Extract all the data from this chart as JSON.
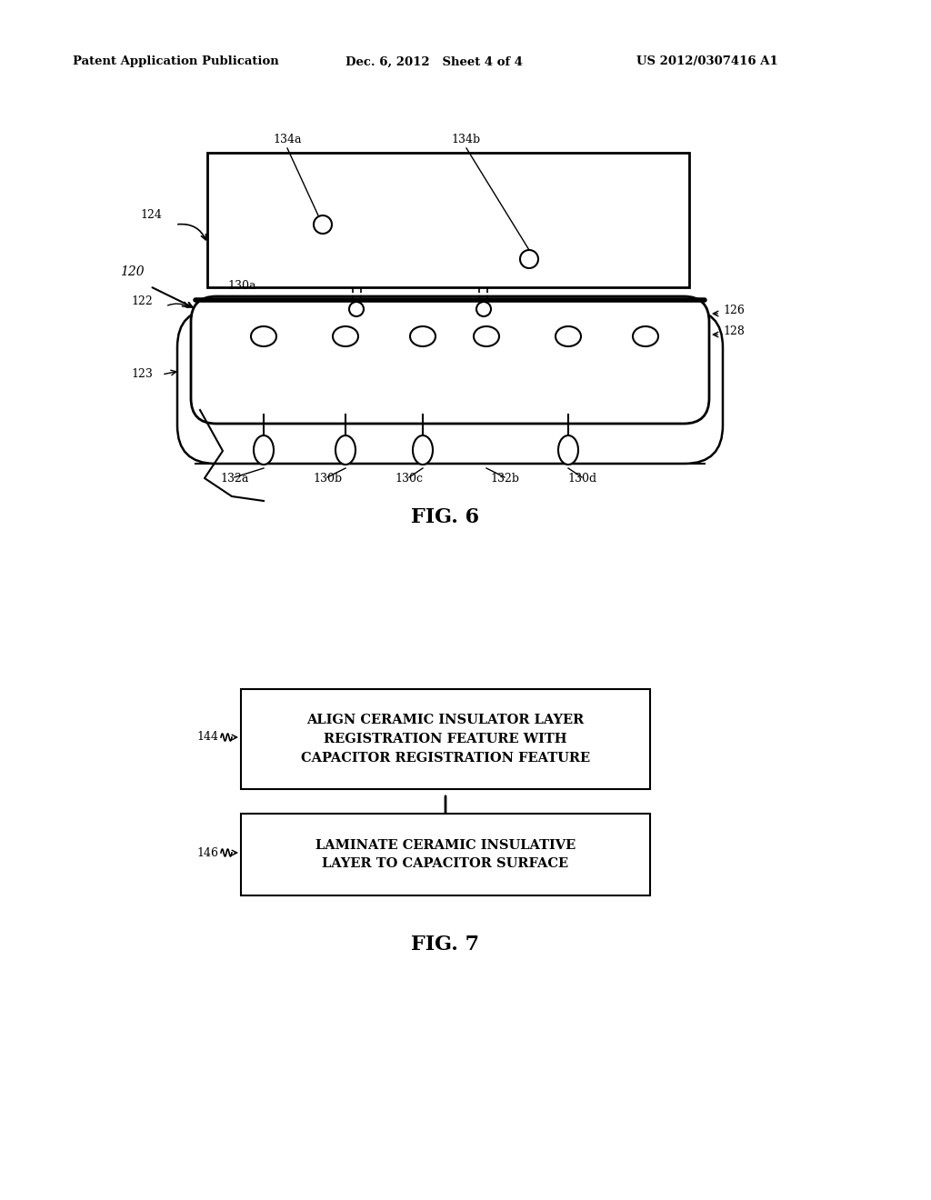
{
  "bg_color": "#ffffff",
  "header_left": "Patent Application Publication",
  "header_mid": "Dec. 6, 2012   Sheet 4 of 4",
  "header_right": "US 2012/0307416 A1",
  "fig6_label": "FIG. 6",
  "fig7_label": "FIG. 7",
  "flow_box1_text": "ALIGN CERAMIC INSULATOR LAYER\nREGISTRATION FEATURE WITH\nCAPACITOR REGISTRATION FEATURE",
  "flow_box2_text": "LAMINATE CERAMIC INSULATIVE\nLAYER TO CAPACITOR SURFACE",
  "label_144": "144",
  "label_146": "146",
  "label_120": "120",
  "label_122": "122",
  "label_123": "123",
  "label_124": "124",
  "label_126": "126",
  "label_128": "128",
  "label_130a": "130a",
  "label_130b": "130b",
  "label_130c": "130c",
  "label_130d": "130d",
  "label_132a": "132a",
  "label_132b": "132b",
  "label_134a": "134a",
  "label_134b": "134b"
}
